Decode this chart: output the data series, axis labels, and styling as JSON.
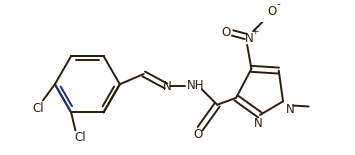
{
  "bg_color": "#ffffff",
  "line_color": "#2a1f0f",
  "blue_color": "#1a2e7a",
  "bond_lw": 1.4,
  "font_size": 8.5,
  "fig_w": 3.55,
  "fig_h": 1.55,
  "dpi": 100,
  "xlim": [
    0,
    355
  ],
  "ylim": [
    0,
    155
  ]
}
